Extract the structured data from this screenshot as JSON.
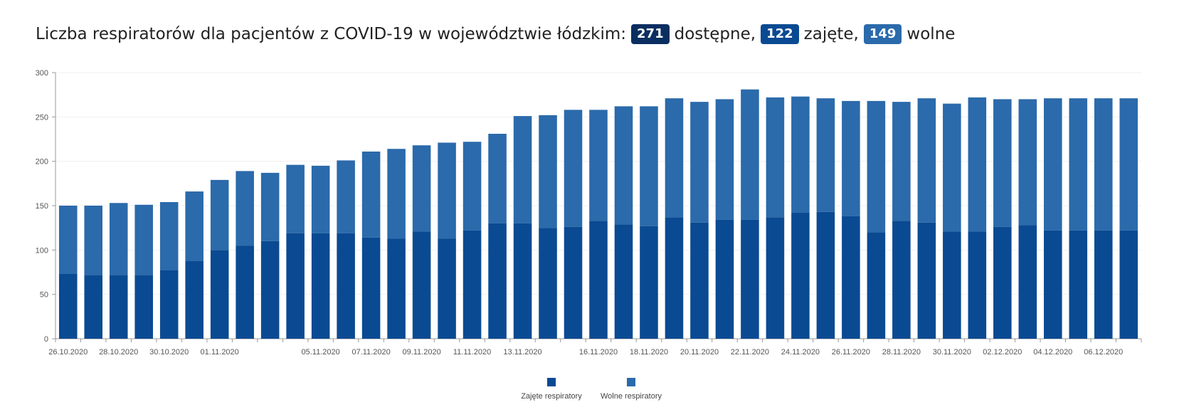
{
  "title": {
    "prefix": "Liczba respiratorów dla pacjentów z COVID-19 w województwie łódzkim:",
    "total": "271",
    "total_label": "dostępne,",
    "occupied": "122",
    "occupied_label": "zajęte,",
    "free": "149",
    "free_label": "wolne"
  },
  "colors": {
    "occupied": "#0a4a92",
    "free": "#2b6aab",
    "badge_total": "#0a2e60"
  },
  "chart_data": {
    "type": "bar",
    "stacked": true,
    "title": "",
    "xlabel": "",
    "ylabel": "",
    "ylim": [
      0,
      300
    ],
    "yticks": [
      0,
      50,
      100,
      150,
      200,
      250,
      300
    ],
    "grid": true,
    "legend_position": "bottom-center",
    "categories": [
      "26.10.2020",
      "27.10.2020",
      "28.10.2020",
      "29.10.2020",
      "30.10.2020",
      "31.10.2020",
      "01.11.2020",
      "02.11.2020",
      "03.11.2020",
      "04.11.2020",
      "05.11.2020",
      "06.11.2020",
      "07.11.2020",
      "08.11.2020",
      "09.11.2020",
      "10.11.2020",
      "11.11.2020",
      "12.11.2020",
      "13.11.2020",
      "14.11.2020",
      "15.11.2020",
      "16.11.2020",
      "17.11.2020",
      "18.11.2020",
      "19.11.2020",
      "20.11.2020",
      "21.11.2020",
      "22.11.2020",
      "23.11.2020",
      "24.11.2020",
      "25.11.2020",
      "26.11.2020",
      "27.11.2020",
      "28.11.2020",
      "29.11.2020",
      "30.11.2020",
      "01.12.2020",
      "02.12.2020",
      "03.12.2020",
      "04.12.2020",
      "05.12.2020",
      "06.12.2020",
      "07.12.2020"
    ],
    "xtick_labels": [
      "26.10.2020",
      "28.10.2020",
      "30.10.2020",
      "01.11.2020",
      "05.11.2020",
      "07.11.2020",
      "09.11.2020",
      "11.11.2020",
      "13.11.2020",
      "16.11.2020",
      "18.11.2020",
      "20.11.2020",
      "22.11.2020",
      "24.11.2020",
      "26.11.2020",
      "28.11.2020",
      "30.11.2020",
      "02.12.2020",
      "04.12.2020",
      "06.12.2020"
    ],
    "series": [
      {
        "name": "Zajęte respiratory",
        "values": [
          73,
          72,
          72,
          72,
          77,
          88,
          100,
          105,
          110,
          119,
          119,
          119,
          114,
          113,
          121,
          113,
          122,
          130,
          130,
          125,
          126,
          133,
          129,
          127,
          137,
          131,
          134,
          134,
          137,
          142,
          143,
          138,
          120,
          133,
          131,
          121,
          121,
          126,
          128,
          122,
          122,
          122,
          122
        ]
      },
      {
        "name": "Wolne respiratory",
        "values": [
          77,
          78,
          81,
          79,
          77,
          78,
          79,
          84,
          77,
          77,
          76,
          82,
          97,
          101,
          97,
          108,
          100,
          101,
          121,
          127,
          132,
          125,
          133,
          135,
          134,
          136,
          136,
          147,
          135,
          131,
          128,
          130,
          148,
          134,
          140,
          144,
          151,
          144,
          142,
          149,
          149,
          149,
          149
        ]
      }
    ]
  }
}
